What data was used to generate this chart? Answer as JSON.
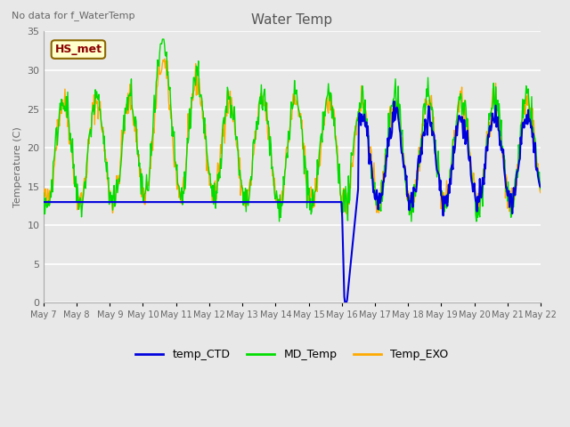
{
  "title": "Water Temp",
  "ylabel": "Temperature (C)",
  "top_left_text": "No data for f_WaterTemp",
  "annotation_box": "HS_met",
  "ylim": [
    0,
    35
  ],
  "yticks": [
    0,
    5,
    10,
    15,
    20,
    25,
    30,
    35
  ],
  "background_color": "#e8e8e8",
  "series_colors": {
    "temp_CTD": "#0000dd",
    "MD_Temp": "#00dd00",
    "Temp_EXO": "#ffaa00"
  },
  "x_tick_labels": [
    "May 7",
    "May 8",
    "May 9",
    "May 10",
    "May 11",
    "May 12",
    "May 13",
    "May 14",
    "May 15",
    "May 16",
    "May 17",
    "May 18",
    "May 19",
    "May 20",
    "May 21",
    "May 22"
  ],
  "x_tick_positions": [
    0,
    1,
    2,
    3,
    4,
    5,
    6,
    7,
    8,
    9,
    10,
    11,
    12,
    13,
    14,
    15
  ],
  "xlim": [
    0,
    15
  ],
  "ctd_flat_val": 13.0,
  "ctd_switch_day": 9.0
}
